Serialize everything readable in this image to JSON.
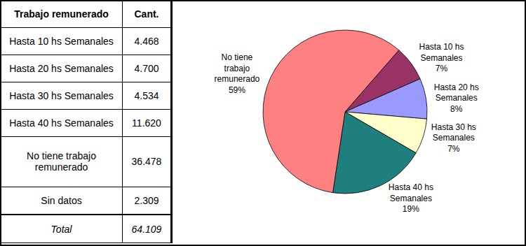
{
  "table": {
    "header": [
      "Trabajo remunerado",
      "Cant."
    ],
    "rows": [
      [
        "Hasta 10 hs Semanales",
        "4.468"
      ],
      [
        "Hasta 20 hs Semanales",
        "4.700"
      ],
      [
        "Hasta 30 hs Semanales",
        "4.534"
      ],
      [
        "Hasta 40 hs Semanales",
        "11.620"
      ],
      [
        "No tiene trabajo remunerado",
        "36.478"
      ],
      [
        "Sin datos",
        "2.309"
      ]
    ],
    "total": [
      "Total",
      "64.109"
    ]
  },
  "chart_data": {
    "type": "pie",
    "categories": [
      "Hasta 10 hs Semanales",
      "Hasta 20 hs Semanales",
      "Hasta 30 hs Semanales",
      "Hasta 40 hs Semanales",
      "No tiene trabajo remunerado"
    ],
    "values": [
      7,
      8,
      7,
      19,
      59
    ],
    "value_labels": [
      "7%",
      "8%",
      "7%",
      "19%",
      "59%"
    ],
    "colors": [
      "#993366",
      "#9999ff",
      "#ffffcc",
      "#1f7f7f",
      "#ff8080"
    ],
    "data_labels": true
  }
}
